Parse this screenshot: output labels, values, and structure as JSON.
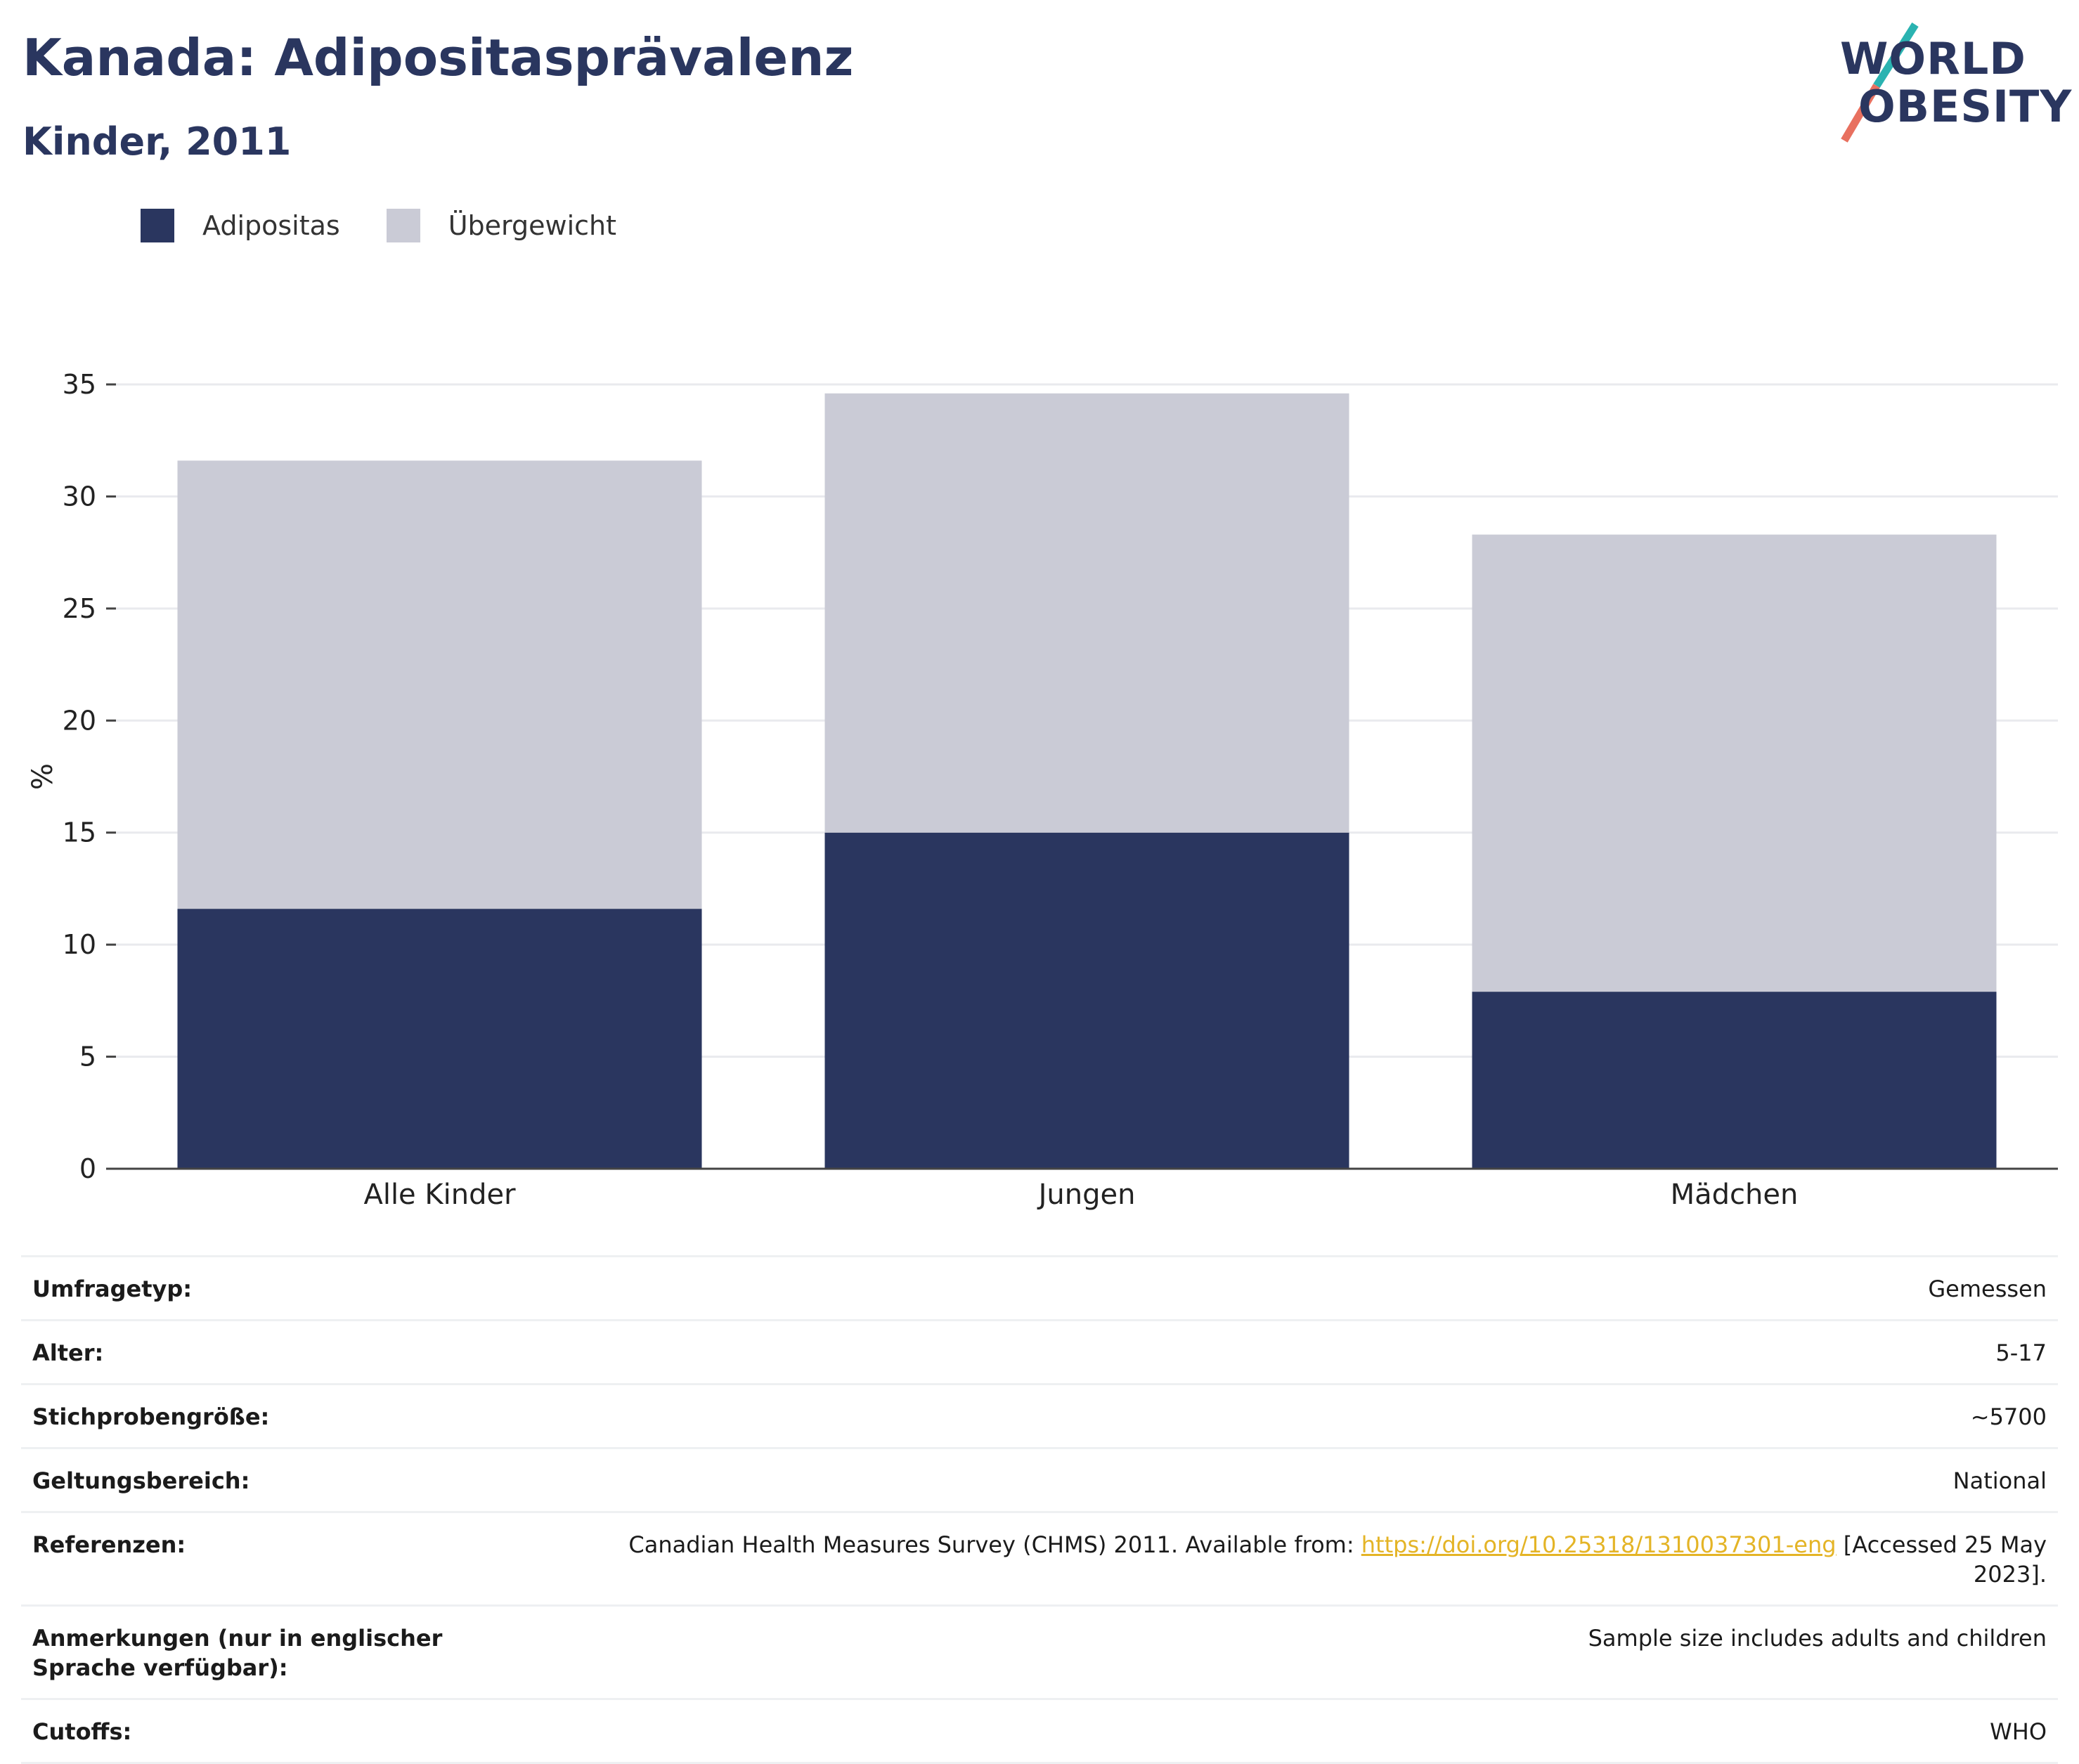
{
  "header": {
    "title": "Kanada: Adipositasprävalenz",
    "subtitle": "Kinder, 2011"
  },
  "logo": {
    "line1": "WORLD",
    "line2": "OBESITY"
  },
  "colors": {
    "obesity": "#2a365f",
    "overweight": "#cacbd6",
    "accent_teal": "#2ab3b1",
    "accent_red": "#e8705f",
    "link": "#e4b426"
  },
  "legend": [
    {
      "label": "Adipositas",
      "color": "#2a365f"
    },
    {
      "label": "Übergewicht",
      "color": "#cacbd6"
    }
  ],
  "chart_data": {
    "type": "bar",
    "stacked": true,
    "categories": [
      "Alle Kinder",
      "Jungen",
      "Mädchen"
    ],
    "series": [
      {
        "name": "Adipositas",
        "values": [
          11.6,
          15.0,
          7.9
        ]
      },
      {
        "name": "Übergewicht",
        "values": [
          20.0,
          19.6,
          20.4
        ]
      }
    ],
    "totals": [
      31.6,
      34.6,
      28.3
    ],
    "ylabel": "%",
    "ylim": [
      0,
      35
    ],
    "yticks": [
      0,
      5,
      10,
      15,
      20,
      25,
      30,
      35
    ],
    "grid": true,
    "legend_position": "top-left"
  },
  "info": {
    "survey_type": {
      "label": "Umfragetyp:",
      "value": "Gemessen"
    },
    "age": {
      "label": "Alter:",
      "value": "5-17"
    },
    "sample_size": {
      "label": "Stichprobengröße:",
      "value": "~5700"
    },
    "scope": {
      "label": "Geltungsbereich:",
      "value": "National"
    },
    "references": {
      "label": "Referenzen:",
      "prefix": "Canadian Health Measures Survey (CHMS) 2011. Available from: ",
      "link": "https://doi.org/10.25318/1310037301-eng",
      "suffix": " [Accessed 25 May 2023]."
    },
    "notes": {
      "label": "Anmerkungen (nur in englischer Sprache verfügbar):",
      "value": "Sample size includes adults and children"
    },
    "cutoffs": {
      "label": "Cutoffs:",
      "value": "WHO"
    }
  }
}
